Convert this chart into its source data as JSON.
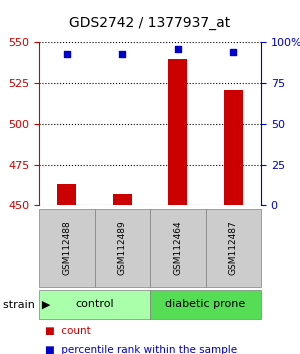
{
  "title": "GDS2742 / 1377937_at",
  "samples": [
    "GSM112488",
    "GSM112489",
    "GSM112464",
    "GSM112487"
  ],
  "groups": [
    "control",
    "control",
    "diabetic prone",
    "diabetic prone"
  ],
  "count_values": [
    463,
    457,
    540,
    521
  ],
  "percentile_values": [
    93,
    93,
    96,
    94
  ],
  "ylim_left": [
    450,
    550
  ],
  "ylim_right": [
    0,
    100
  ],
  "yticks_left": [
    450,
    475,
    500,
    525,
    550
  ],
  "yticks_right": [
    0,
    25,
    50,
    75,
    100
  ],
  "ytick_labels_right": [
    "0",
    "25",
    "50",
    "75",
    "100%"
  ],
  "bar_color": "#cc0000",
  "dot_color": "#0000cc",
  "bar_width": 0.35,
  "group_colors": {
    "control": "#aaffaa",
    "diabetic prone": "#55dd55"
  },
  "group_label": "strain",
  "legend_items": [
    {
      "color": "#cc0000",
      "label": "count"
    },
    {
      "color": "#0000cc",
      "label": "percentile rank within the sample"
    }
  ],
  "background_color": "#ffffff",
  "plot_bg_color": "#ffffff",
  "grid_color": "#000000",
  "left_tick_color": "#cc0000",
  "right_tick_color": "#0000cc"
}
